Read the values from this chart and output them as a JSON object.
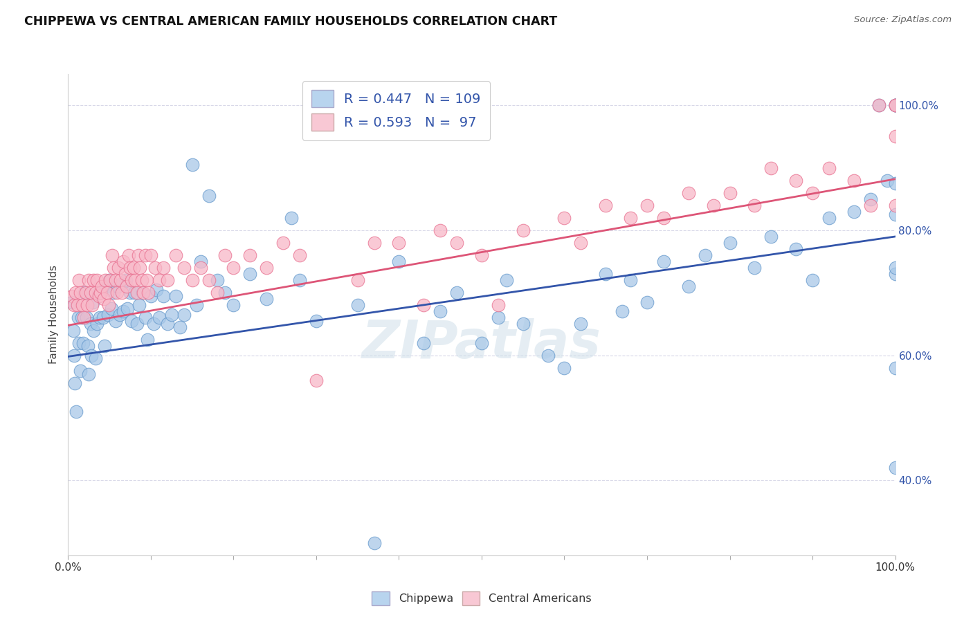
{
  "title": "CHIPPEWA VS CENTRAL AMERICAN FAMILY HOUSEHOLDS CORRELATION CHART",
  "source": "Source: ZipAtlas.com",
  "ylabel": "Family Households",
  "xlim": [
    0.0,
    1.0
  ],
  "ylim": [
    0.28,
    1.05
  ],
  "chippewa_color": "#a8c8e8",
  "central_color": "#f8b8c8",
  "chippewa_edge_color": "#6699cc",
  "central_edge_color": "#e87090",
  "chippewa_line_color": "#3355aa",
  "central_line_color": "#dd5577",
  "legend_box_chippewa": "#b8d4ee",
  "legend_box_central": "#f8c8d4",
  "R_chippewa": 0.447,
  "N_chippewa": 109,
  "R_central": 0.593,
  "N_central": 97,
  "chippewa_line_start_y": 0.598,
  "chippewa_line_end_y": 0.79,
  "central_line_start_y": 0.648,
  "central_line_end_y": 0.882,
  "chippewa_x": [
    0.005,
    0.006,
    0.007,
    0.008,
    0.01,
    0.012,
    0.013,
    0.015,
    0.016,
    0.018,
    0.02,
    0.022,
    0.024,
    0.025,
    0.027,
    0.028,
    0.03,
    0.031,
    0.033,
    0.035,
    0.037,
    0.038,
    0.04,
    0.042,
    0.044,
    0.046,
    0.048,
    0.05,
    0.052,
    0.055,
    0.057,
    0.06,
    0.062,
    0.065,
    0.067,
    0.07,
    0.072,
    0.075,
    0.077,
    0.08,
    0.083,
    0.086,
    0.09,
    0.093,
    0.096,
    0.1,
    0.103,
    0.107,
    0.11,
    0.115,
    0.12,
    0.125,
    0.13,
    0.135,
    0.14,
    0.15,
    0.155,
    0.16,
    0.17,
    0.18,
    0.19,
    0.2,
    0.22,
    0.24,
    0.27,
    0.28,
    0.3,
    0.35,
    0.37,
    0.4,
    0.43,
    0.45,
    0.47,
    0.5,
    0.52,
    0.53,
    0.55,
    0.58,
    0.6,
    0.62,
    0.65,
    0.67,
    0.68,
    0.7,
    0.72,
    0.75,
    0.77,
    0.8,
    0.83,
    0.85,
    0.88,
    0.9,
    0.92,
    0.95,
    0.97,
    0.98,
    0.99,
    1.0,
    1.0,
    1.0,
    1.0,
    1.0,
    1.0,
    1.0,
    1.0,
    1.0
  ],
  "chippewa_y": [
    0.685,
    0.64,
    0.6,
    0.555,
    0.51,
    0.66,
    0.62,
    0.575,
    0.66,
    0.62,
    0.7,
    0.66,
    0.615,
    0.57,
    0.65,
    0.6,
    0.685,
    0.64,
    0.595,
    0.65,
    0.7,
    0.66,
    0.7,
    0.66,
    0.615,
    0.71,
    0.665,
    0.72,
    0.675,
    0.7,
    0.655,
    0.71,
    0.665,
    0.715,
    0.67,
    0.72,
    0.675,
    0.7,
    0.655,
    0.7,
    0.65,
    0.68,
    0.7,
    0.66,
    0.625,
    0.695,
    0.65,
    0.705,
    0.66,
    0.695,
    0.65,
    0.665,
    0.695,
    0.645,
    0.665,
    0.905,
    0.68,
    0.75,
    0.855,
    0.72,
    0.7,
    0.68,
    0.73,
    0.69,
    0.82,
    0.72,
    0.655,
    0.68,
    0.3,
    0.75,
    0.62,
    0.67,
    0.7,
    0.62,
    0.66,
    0.72,
    0.65,
    0.6,
    0.58,
    0.65,
    0.73,
    0.67,
    0.72,
    0.685,
    0.75,
    0.71,
    0.76,
    0.78,
    0.74,
    0.79,
    0.77,
    0.72,
    0.82,
    0.83,
    0.85,
    1.0,
    0.88,
    1.0,
    1.0,
    1.0,
    0.825,
    0.875,
    0.73,
    0.42,
    0.74,
    0.58
  ],
  "central_x": [
    0.005,
    0.007,
    0.009,
    0.011,
    0.013,
    0.015,
    0.017,
    0.019,
    0.021,
    0.023,
    0.025,
    0.027,
    0.029,
    0.031,
    0.033,
    0.035,
    0.037,
    0.039,
    0.041,
    0.043,
    0.045,
    0.047,
    0.049,
    0.051,
    0.053,
    0.055,
    0.057,
    0.059,
    0.061,
    0.063,
    0.065,
    0.067,
    0.069,
    0.071,
    0.073,
    0.075,
    0.077,
    0.079,
    0.081,
    0.083,
    0.085,
    0.087,
    0.089,
    0.091,
    0.093,
    0.095,
    0.097,
    0.1,
    0.105,
    0.11,
    0.115,
    0.12,
    0.13,
    0.14,
    0.15,
    0.16,
    0.17,
    0.18,
    0.19,
    0.2,
    0.22,
    0.24,
    0.26,
    0.28,
    0.3,
    0.35,
    0.37,
    0.4,
    0.43,
    0.45,
    0.47,
    0.5,
    0.52,
    0.55,
    0.6,
    0.62,
    0.65,
    0.68,
    0.7,
    0.72,
    0.75,
    0.78,
    0.8,
    0.83,
    0.85,
    0.88,
    0.9,
    0.92,
    0.95,
    0.97,
    0.98,
    1.0,
    1.0,
    1.0,
    1.0
  ],
  "central_y": [
    0.695,
    0.68,
    0.7,
    0.68,
    0.72,
    0.7,
    0.68,
    0.66,
    0.7,
    0.68,
    0.72,
    0.7,
    0.68,
    0.72,
    0.7,
    0.72,
    0.695,
    0.7,
    0.71,
    0.69,
    0.72,
    0.7,
    0.68,
    0.72,
    0.76,
    0.74,
    0.72,
    0.7,
    0.74,
    0.72,
    0.7,
    0.75,
    0.73,
    0.71,
    0.76,
    0.74,
    0.72,
    0.74,
    0.72,
    0.7,
    0.76,
    0.74,
    0.72,
    0.7,
    0.76,
    0.72,
    0.7,
    0.76,
    0.74,
    0.72,
    0.74,
    0.72,
    0.76,
    0.74,
    0.72,
    0.74,
    0.72,
    0.7,
    0.76,
    0.74,
    0.76,
    0.74,
    0.78,
    0.76,
    0.56,
    0.72,
    0.78,
    0.78,
    0.68,
    0.8,
    0.78,
    0.76,
    0.68,
    0.8,
    0.82,
    0.78,
    0.84,
    0.82,
    0.84,
    0.82,
    0.86,
    0.84,
    0.86,
    0.84,
    0.9,
    0.88,
    0.86,
    0.9,
    0.88,
    0.84,
    1.0,
    1.0,
    0.95,
    1.0,
    0.84
  ],
  "watermark_text": "ZIPatlas",
  "background_color": "#ffffff",
  "grid_color": "#d8d8e8"
}
